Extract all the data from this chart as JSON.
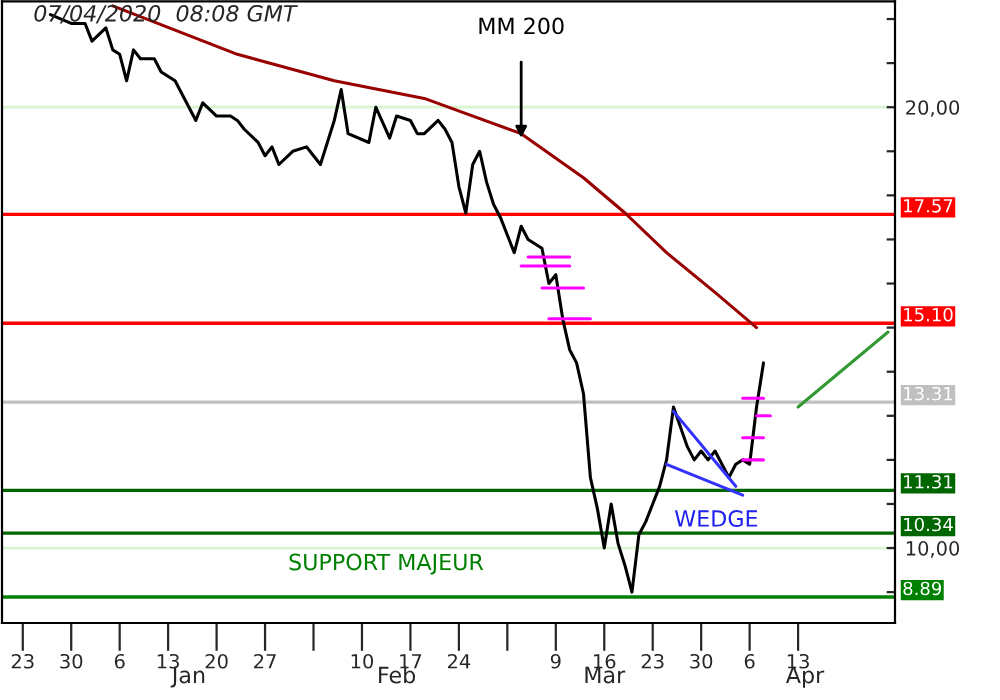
{
  "chart_data": {
    "type": "line",
    "title": "07/04/2020  08:08 GMT",
    "series": [
      {
        "color": "#000000",
        "x": [
          "2019-12-27",
          "2019-12-30",
          "2020-01-01",
          "2020-01-02",
          "2020-01-04",
          "2020-01-05",
          "2020-01-06",
          "2020-01-07",
          "2020-01-08",
          "2020-01-09",
          "2020-01-11",
          "2020-01-12",
          "2020-01-14",
          "2020-01-15",
          "2020-01-17",
          "2020-01-18",
          "2020-01-20",
          "2020-01-22",
          "2020-01-23",
          "2020-01-24",
          "2020-01-26",
          "2020-01-27",
          "2020-01-28",
          "2020-01-29",
          "2020-01-31",
          "2020-02-02",
          "2020-02-03",
          "2020-02-04",
          "2020-02-05",
          "2020-02-06",
          "2020-02-07",
          "2020-02-08",
          "2020-02-11",
          "2020-02-12",
          "2020-02-14",
          "2020-02-15",
          "2020-02-17",
          "2020-02-18",
          "2020-02-19",
          "2020-02-21",
          "2020-02-22",
          "2020-02-23",
          "2020-02-24",
          "2020-02-25",
          "2020-02-26",
          "2020-02-27",
          "2020-02-28",
          "2020-02-29",
          "2020-03-01",
          "2020-03-03",
          "2020-03-04",
          "2020-03-05",
          "2020-03-07",
          "2020-03-08",
          "2020-03-09",
          "2020-03-10",
          "2020-03-11",
          "2020-03-12",
          "2020-03-13",
          "2020-03-14",
          "2020-03-15",
          "2020-03-16",
          "2020-03-17",
          "2020-03-18",
          "2020-03-19",
          "2020-03-20",
          "2020-03-21",
          "2020-03-22",
          "2020-03-23",
          "2020-03-24",
          "2020-03-25",
          "2020-03-26",
          "2020-03-28",
          "2020-03-29",
          "2020-03-30",
          "2020-03-31",
          "2020-04-01",
          "2020-04-02",
          "2020-04-03",
          "2020-04-04",
          "2020-04-05",
          "2020-04-06",
          "2020-04-07",
          "2020-04-08"
        ],
        "values": [
          22.1,
          21.9,
          21.9,
          21.5,
          21.8,
          21.3,
          21.2,
          20.6,
          21.3,
          21.1,
          21.1,
          20.8,
          20.6,
          20.3,
          19.7,
          20.1,
          19.8,
          19.8,
          19.7,
          19.5,
          19.2,
          18.9,
          19.1,
          18.7,
          19.0,
          19.1,
          18.9,
          18.7,
          19.2,
          19.7,
          20.4,
          19.4,
          19.2,
          20.0,
          19.3,
          19.8,
          19.7,
          19.4,
          19.4,
          19.7,
          19.5,
          19.2,
          18.2,
          17.6,
          18.7,
          19.0,
          18.3,
          17.8,
          17.5,
          16.7,
          17.3,
          17.0,
          16.8,
          16.0,
          16.2,
          15.2,
          14.5,
          14.2,
          13.5,
          11.6,
          10.9,
          10.0,
          11.0,
          10.1,
          9.6,
          9.0,
          10.3,
          10.6,
          11.0,
          11.4,
          12.0,
          13.2,
          12.3,
          12.0,
          12.2,
          12.0,
          12.2,
          11.9,
          11.6,
          11.9,
          12.0,
          11.9,
          13.2,
          14.2
        ]
      },
      {
        "color": "#990000",
        "x": [
          "2020-01-05",
          "2020-01-23",
          "2020-02-06",
          "2020-02-19",
          "2020-03-04",
          "2020-03-13",
          "2020-03-19",
          "2020-03-25",
          "2020-04-01",
          "2020-04-07"
        ],
        "values": [
          22.3,
          21.2,
          20.6,
          20.2,
          19.4,
          18.4,
          17.6,
          16.7,
          15.8,
          15.0
        ]
      },
      {
        "color": "#ff00ff",
        "x": [
          "2020-03-05",
          "2020-03-11"
        ],
        "values": [
          16.6,
          16.6
        ]
      },
      {
        "color": "#ff00ff",
        "x": [
          "2020-03-04",
          "2020-03-11"
        ],
        "values": [
          16.4,
          16.4
        ]
      },
      {
        "color": "#ff00ff",
        "x": [
          "2020-03-07",
          "2020-03-13"
        ],
        "values": [
          15.9,
          15.9
        ]
      },
      {
        "color": "#ff00ff",
        "x": [
          "2020-03-08",
          "2020-03-14"
        ],
        "values": [
          15.2,
          15.2
        ]
      },
      {
        "color": "#ff00ff",
        "x": [
          "2020-04-05",
          "2020-04-08"
        ],
        "values": [
          13.4,
          13.4
        ]
      },
      {
        "color": "#ff00ff",
        "x": [
          "2020-04-07",
          "2020-04-09"
        ],
        "values": [
          13.0,
          13.0
        ]
      },
      {
        "color": "#ff00ff",
        "x": [
          "2020-04-05",
          "2020-04-08"
        ],
        "values": [
          12.5,
          12.5
        ]
      },
      {
        "color": "#ff00ff",
        "x": [
          "2020-04-05",
          "2020-04-08"
        ],
        "values": [
          12.0,
          12.0
        ]
      },
      {
        "color": "#3333ff",
        "x": [
          "2020-03-26",
          "2020-04-04"
        ],
        "values": [
          13.1,
          11.4
        ]
      },
      {
        "color": "#3333ff",
        "x": [
          "2020-03-25",
          "2020-04-05"
        ],
        "values": [
          11.9,
          11.2
        ]
      },
      {
        "color": "#339933",
        "x": [
          "2020-04-13",
          "2020-04-26"
        ],
        "values": [
          13.2,
          14.9
        ]
      }
    ],
    "ref_lines": [
      {
        "axis": "y",
        "value": 17.57,
        "label": "17.57",
        "color": "#ff0000"
      },
      {
        "axis": "y",
        "value": 15.1,
        "label": "15.10",
        "color": "#ff0000"
      },
      {
        "axis": "y",
        "value": 13.31,
        "label": "13.31",
        "color": "#c0c0c0"
      },
      {
        "axis": "y",
        "value": 11.31,
        "label": "11.31",
        "color": "#006600"
      },
      {
        "axis": "y",
        "value": 10.34,
        "label": "10.34",
        "color": "#006600"
      },
      {
        "axis": "y",
        "value": 8.89,
        "label": "8.89",
        "color": "#008000"
      }
    ],
    "annotations": [
      {
        "text": "MM 200",
        "x": "2020-03-04",
        "y": 19.3
      },
      "SUPPORT MAJEUR",
      "WEDGE"
    ],
    "xlim": [
      "2019-12-20",
      "2020-04-27"
    ],
    "xticks": [
      {
        "value": "2019-12-23",
        "label": "23"
      },
      {
        "value": "2019-12-30",
        "label": "30"
      },
      {
        "value": "2020-01-06",
        "label": "6"
      },
      {
        "value": "2020-01-13",
        "label": "13"
      },
      {
        "value": "2020-01-20",
        "label": "20"
      },
      {
        "value": "2020-01-27",
        "label": "27"
      },
      {
        "value": "2020-02-03",
        "label": null
      },
      {
        "value": "2020-02-10",
        "label": "10"
      },
      {
        "value": "2020-02-17",
        "label": "17"
      },
      {
        "value": "2020-02-24",
        "label": "24"
      },
      {
        "value": "2020-03-02",
        "label": null
      },
      {
        "value": "2020-03-09",
        "label": "9"
      },
      {
        "value": "2020-03-16",
        "label": "16"
      },
      {
        "value": "2020-03-23",
        "label": "23"
      },
      {
        "value": "2020-03-30",
        "label": "30"
      },
      {
        "value": "2020-04-06",
        "label": "6"
      },
      {
        "value": "2020-04-13",
        "label": "13"
      }
    ],
    "x2lim": [
      "2019-12-20",
      "2020-04-27"
    ],
    "x2ticks": [
      {
        "value": "2020-01-16",
        "label": "Jan"
      },
      {
        "value": "2020-02-15",
        "label": "Feb"
      },
      {
        "value": "2020-03-16",
        "label": "Mar"
      },
      {
        "value": "2020-04-14",
        "label": "Apr"
      }
    ],
    "ylim": [
      8.3,
      22.4
    ],
    "yticks": [
      {
        "value": 9,
        "label": null
      },
      {
        "value": 10,
        "label": "10,00"
      },
      {
        "value": 11,
        "label": null
      },
      {
        "value": 12,
        "label": null
      },
      {
        "value": 13,
        "label": null
      },
      {
        "value": 14,
        "label": null
      },
      {
        "value": 15,
        "label": null
      },
      {
        "value": 16,
        "label": null
      },
      {
        "value": 17,
        "label": null
      },
      {
        "value": 18,
        "label": null
      },
      {
        "value": 19,
        "label": null
      },
      {
        "value": 20,
        "label": "20,00"
      },
      {
        "value": 21,
        "label": null
      },
      {
        "value": 22,
        "label": null
      }
    ],
    "grid": "y",
    "legend": false
  }
}
